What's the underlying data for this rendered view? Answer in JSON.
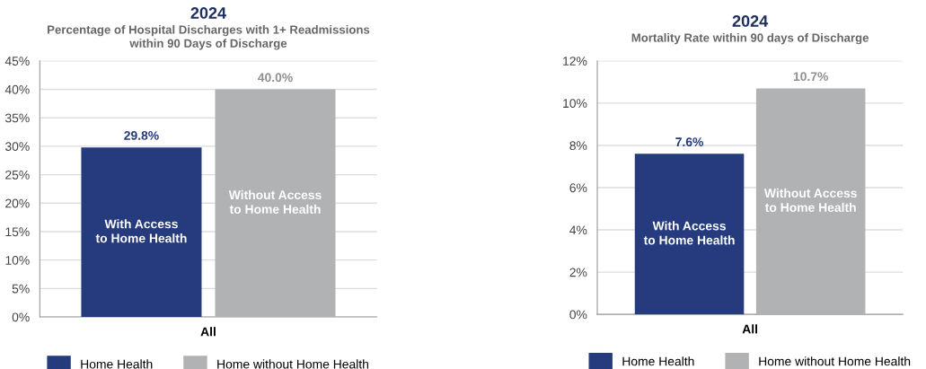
{
  "chart_data": [
    {
      "type": "bar",
      "title": "2024",
      "subtitle": "Percentage of Hospital Discharges with 1+ Readmissions\nwithin 90 Days of Discharge",
      "categories": [
        "All"
      ],
      "series": [
        {
          "name": "Home Health",
          "color": "#253b7e",
          "values": [
            29.8
          ],
          "value_labels": [
            "29.8%"
          ]
        },
        {
          "name": "Home without Home Health",
          "color": "#b1b2b4",
          "values": [
            40.0
          ],
          "value_labels": [
            "40.0%"
          ]
        }
      ],
      "annotations": [
        "With Access\nto Home Health",
        "Without Access\nto Home Health"
      ],
      "ylim": [
        0,
        45
      ],
      "yticks": [
        {
          "value": 0,
          "label": "0%"
        },
        {
          "value": 5,
          "label": "5%"
        },
        {
          "value": 10,
          "label": "10%"
        },
        {
          "value": 15,
          "label": "15%"
        },
        {
          "value": 20,
          "label": "20%"
        },
        {
          "value": 25,
          "label": "25%"
        },
        {
          "value": 30,
          "label": "30%"
        },
        {
          "value": 35,
          "label": "35%"
        },
        {
          "value": 40,
          "label": "40%"
        },
        {
          "value": 45,
          "label": "45%"
        }
      ],
      "grid": "y",
      "legend": "bottom"
    },
    {
      "type": "bar",
      "title": "2024",
      "subtitle": "Mortality Rate within 90 days of Discharge",
      "categories": [
        "All"
      ],
      "series": [
        {
          "name": "Home Health",
          "color": "#253b7e",
          "values": [
            7.6
          ],
          "value_labels": [
            "7.6%"
          ]
        },
        {
          "name": "Home without Home Health",
          "color": "#b1b2b4",
          "values": [
            10.7
          ],
          "value_labels": [
            "10.7%"
          ]
        }
      ],
      "annotations": [
        "With Access\nto Home Health",
        "Without Access\nto Home Health"
      ],
      "ylim": [
        0,
        12
      ],
      "yticks": [
        {
          "value": 0,
          "label": "0%"
        },
        {
          "value": 2,
          "label": "2%"
        },
        {
          "value": 4,
          "label": "4%"
        },
        {
          "value": 6,
          "label": "6%"
        },
        {
          "value": 8,
          "label": "8%"
        },
        {
          "value": 10,
          "label": "10%"
        },
        {
          "value": 12,
          "label": "12%"
        }
      ],
      "grid": "y",
      "legend": "bottom"
    }
  ]
}
